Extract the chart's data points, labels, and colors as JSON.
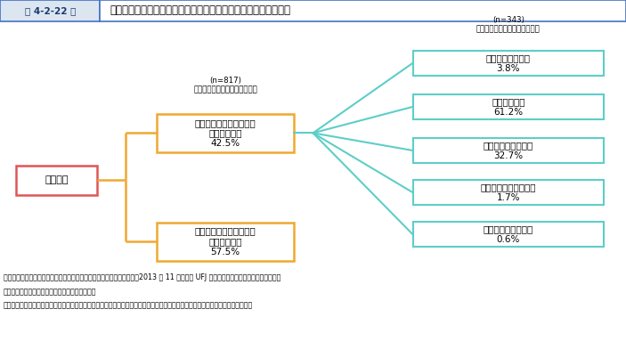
{
  "title": "第 4-2-22 図",
  "title_main": "国の中小企業・小規模事業者施策の活用状況、評価（市区町村）",
  "root_label": "市区町村",
  "node1_label": "施策の立案時に参考にし\nたことがある\n42.5%",
  "node1_n": "(n=817)\n中小企業・小規模事業者施策を",
  "node2_label": "施策の立案時に参考にし\nたことがない\n57.5%",
  "right_n": "(n=343)\n中小企業・小規模事業者施策を",
  "right_nodes": [
    {
      "label": "高く評価している\n3.8%"
    },
    {
      "label": "評価している\n61.2%"
    },
    {
      "label": "どちらとも言えない\n32.7%"
    },
    {
      "label": "あまり評価していない\n1.7%"
    },
    {
      "label": "全く評価していない\n0.6%"
    }
  ],
  "footer_lines": [
    "資料：中小企業庁委託「自治体の中小企業支援の実態に関する調査」（2013 年 11 月、三菱 UFJ リサーチ＆コンサルティング（株））",
    "（注）１．市区町村には、政令指定都市を含む。",
    "　　　２．他の自治体とは、市区町村の場合は、市区町村が所属する都道府県、都道府県の場合は、都道府県内の市区町村を指す。"
  ],
  "root_box_color": "#e05555",
  "node_box_color": "#f0a830",
  "right_box_color": "#5ecec8",
  "line_color_orange": "#f0a830",
  "line_color_teal": "#5ecec8",
  "header_bg": "#dce6f1",
  "header_border": "#4472c4"
}
